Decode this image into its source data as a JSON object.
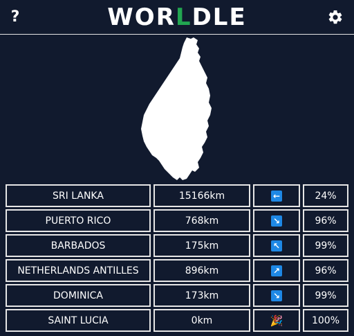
{
  "header": {
    "help_label": "?",
    "title_part1": "WOR",
    "title_part2": "L",
    "title_part3": "DLE",
    "settings_icon": "gear-icon"
  },
  "colors": {
    "background": "#111a2e",
    "accent_green": "#22a651",
    "arrow_blue": "#1e88e5",
    "border": "#e6e6e6"
  },
  "country_shape_icon": "country-silhouette",
  "guesses": [
    {
      "country": "SRI LANKA",
      "distance": "15166km",
      "direction": "←",
      "direction_icon": "arrow-left-icon",
      "proximity": "24%"
    },
    {
      "country": "PUERTO RICO",
      "distance": "768km",
      "direction": "↘",
      "direction_icon": "arrow-down-right-icon",
      "proximity": "96%"
    },
    {
      "country": "BARBADOS",
      "distance": "175km",
      "direction": "↖",
      "direction_icon": "arrow-up-left-icon",
      "proximity": "99%"
    },
    {
      "country": "NETHERLANDS ANTILLES",
      "distance": "896km",
      "direction": "↗",
      "direction_icon": "arrow-up-right-icon",
      "proximity": "96%"
    },
    {
      "country": "DOMINICA",
      "distance": "173km",
      "direction": "↘",
      "direction_icon": "arrow-down-right-icon",
      "proximity": "99%"
    },
    {
      "country": "SAINT LUCIA",
      "distance": "0km",
      "direction": "🎉",
      "direction_icon": "party-popper-icon",
      "proximity": "100%"
    }
  ]
}
